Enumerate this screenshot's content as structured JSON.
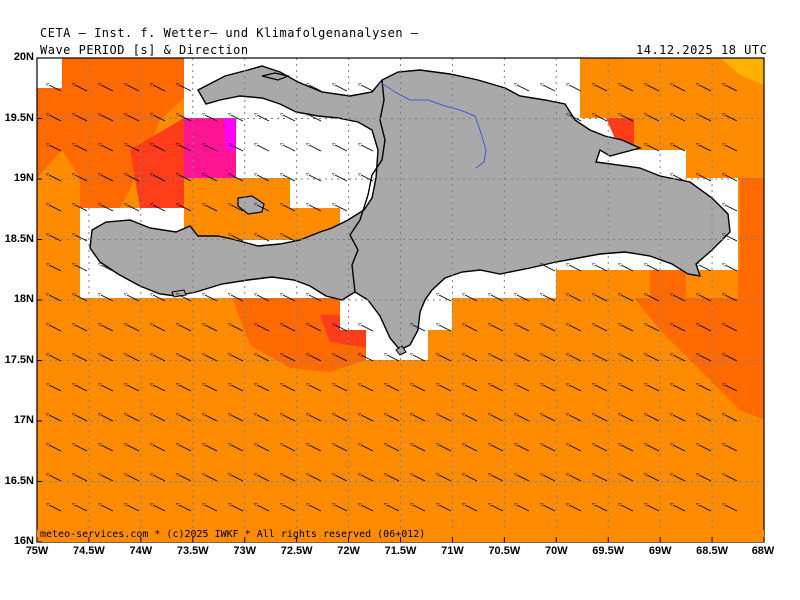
{
  "header": {
    "line1": "CETA — Inst. f. Wetter— und Klimafolgenanalysen —",
    "line2_left": "Wave PERIOD [s] & Direction",
    "line2_right": "14.12.2025 18 UTC"
  },
  "footer": {
    "credit": "meteo-services.com * (c)2025 IWKF * All rights reserved (06+012)"
  },
  "map_data": {
    "lon_range": [
      -75,
      -68
    ],
    "lat_range": [
      16,
      20
    ],
    "lat_labels": [
      "20N",
      "19.5N",
      "19N",
      "18.5N",
      "18N",
      "17.5N",
      "17N",
      "16.5N",
      "16N"
    ],
    "lon_labels": [
      "75W",
      "74.5W",
      "74W",
      "73.5W",
      "73W",
      "72.5W",
      "72W",
      "71.5W",
      "71W",
      "70.5W",
      "70W",
      "69.5W",
      "69W",
      "68.5W",
      "68W"
    ],
    "colors": {
      "sea_period_base": "#ff8c00",
      "sea_period_mid": "#ff6a00",
      "sea_period_high": "#ff3d1a",
      "sea_period_max": "#ff1493",
      "sea_period_extreme": "#ff00ff",
      "sea_period_low": "#ffb000",
      "land": "#a9a9a9",
      "river": "#3b5bdb",
      "grid": "#808080"
    },
    "prevailing_wave_direction": "from east-southeast toward west-northwest"
  }
}
